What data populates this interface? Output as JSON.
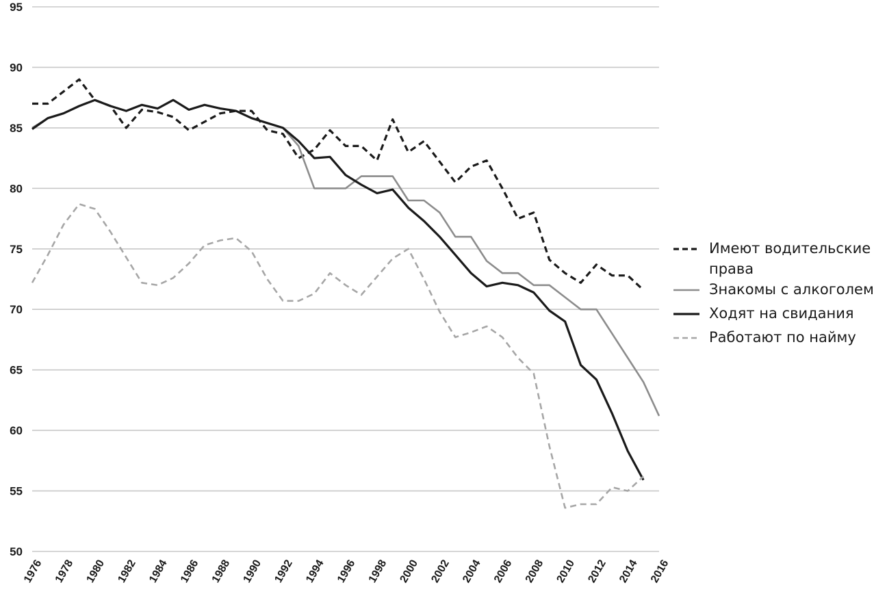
{
  "chart_data": {
    "type": "line",
    "title": "",
    "xlabel": "",
    "ylabel": "",
    "ylim": [
      50,
      95
    ],
    "yticks": [
      50,
      55,
      60,
      65,
      70,
      75,
      80,
      85,
      90,
      95
    ],
    "xlim": [
      1976,
      2016
    ],
    "xticks": [
      "1976",
      "1978",
      "1980",
      "1982",
      "1984",
      "1986",
      "1988",
      "1990",
      "1992",
      "1994",
      "1996",
      "1998",
      "2000",
      "2002",
      "2004",
      "2006",
      "2008",
      "2010",
      "2012",
      "2014",
      "2016"
    ],
    "grid": "horizontal",
    "legend_position": "right",
    "series": [
      {
        "name": "Имеют водительские права",
        "legend_lines": [
          "Имеют водительские",
          "права"
        ],
        "style": "dashed",
        "color": "#1a1a1a",
        "x": [
          1976,
          1977,
          1978,
          1979,
          1980,
          1981,
          1982,
          1983,
          1984,
          1985,
          1986,
          1987,
          1988,
          1989,
          1990,
          1991,
          1992,
          1993,
          1994,
          1995,
          1996,
          1997,
          1998,
          1999,
          2000,
          2001,
          2002,
          2003,
          2004,
          2005,
          2006,
          2007,
          2008,
          2009,
          2010,
          2011,
          2012,
          2013,
          2014,
          2015
        ],
        "y": [
          87.0,
          87.0,
          88.0,
          89.0,
          87.3,
          86.8,
          85.0,
          86.5,
          86.3,
          85.9,
          84.8,
          85.5,
          86.2,
          86.4,
          86.4,
          84.8,
          84.5,
          82.5,
          83.2,
          84.8,
          83.5,
          83.5,
          82.3,
          85.7,
          83.0,
          83.9,
          82.2,
          80.5,
          81.8,
          82.3,
          80.0,
          77.5,
          78.0,
          74.1,
          73.0,
          72.2,
          73.7,
          72.8,
          72.8,
          71.6
        ]
      },
      {
        "name": "Знакомы с алкоголем",
        "legend_lines": [
          "Знакомы с алкоголем"
        ],
        "style": "solid",
        "color": "#8c8c8c",
        "x": [
          1976,
          1977,
          1978,
          1979,
          1980,
          1981,
          1982,
          1983,
          1984,
          1985,
          1986,
          1987,
          1988,
          1989,
          1990,
          1991,
          1992,
          1993,
          1994,
          1995,
          1996,
          1997,
          1998,
          1999,
          2000,
          2001,
          2002,
          2003,
          2004,
          2005,
          2006,
          2007,
          2008,
          2009,
          2010,
          2011,
          2012,
          2013,
          2014,
          2015,
          2016
        ],
        "y": [
          85.0,
          85.8,
          86.2,
          86.8,
          87.3,
          86.8,
          86.4,
          86.9,
          86.6,
          87.3,
          86.5,
          86.9,
          86.6,
          86.4,
          85.8,
          85.4,
          85.0,
          83.5,
          80.0,
          80.0,
          80.0,
          81.0,
          81.0,
          81.0,
          79.0,
          79.0,
          78.0,
          76.0,
          76.0,
          74.0,
          73.0,
          73.0,
          72.0,
          72.0,
          71.0,
          70.0,
          70.0,
          68.0,
          66.0,
          64.0,
          61.2
        ]
      },
      {
        "name": "Ходят на свидания",
        "legend_lines": [
          "Ходят на свидания"
        ],
        "style": "solid",
        "color": "#1a1a1a",
        "x": [
          1976,
          1977,
          1978,
          1979,
          1980,
          1981,
          1982,
          1983,
          1984,
          1985,
          1986,
          1987,
          1988,
          1989,
          1990,
          1991,
          1992,
          1993,
          1994,
          1995,
          1996,
          1997,
          1998,
          1999,
          2000,
          2001,
          2002,
          2003,
          2004,
          2005,
          2006,
          2007,
          2008,
          2009,
          2010,
          2011,
          2012,
          2013,
          2014,
          2015
        ],
        "y": [
          84.9,
          85.8,
          86.2,
          86.8,
          87.3,
          86.8,
          86.4,
          86.9,
          86.6,
          87.3,
          86.5,
          86.9,
          86.6,
          86.4,
          85.8,
          85.4,
          85.0,
          83.9,
          82.5,
          82.6,
          81.1,
          80.3,
          79.6,
          79.9,
          78.4,
          77.3,
          76.0,
          74.5,
          73.0,
          71.9,
          72.2,
          72.0,
          71.4,
          69.9,
          69.0,
          65.4,
          64.2,
          61.4,
          58.3,
          55.9
        ]
      },
      {
        "name": "Работают по найму",
        "legend_lines": [
          "Работают по найму"
        ],
        "style": "dashed",
        "color": "#a6a6a6",
        "x": [
          1976,
          1977,
          1978,
          1979,
          1980,
          1981,
          1982,
          1983,
          1984,
          1985,
          1986,
          1987,
          1988,
          1989,
          1990,
          1991,
          1992,
          1993,
          1994,
          1995,
          1996,
          1997,
          1998,
          1999,
          2000,
          2001,
          2002,
          2003,
          2004,
          2005,
          2006,
          2007,
          2008,
          2009,
          2010,
          2011,
          2012,
          2013,
          2014,
          2015
        ],
        "y": [
          72.2,
          74.5,
          77.0,
          78.7,
          78.3,
          76.4,
          74.3,
          72.2,
          72.0,
          72.6,
          73.8,
          75.3,
          75.7,
          75.9,
          74.8,
          72.5,
          70.7,
          70.7,
          71.3,
          73.0,
          72.0,
          71.2,
          72.7,
          74.2,
          75.0,
          72.5,
          69.8,
          67.7,
          68.1,
          68.6,
          67.7,
          66.0,
          64.7,
          58.7,
          53.6,
          53.9,
          53.9,
          55.3,
          55.0,
          56.2
        ]
      }
    ]
  }
}
